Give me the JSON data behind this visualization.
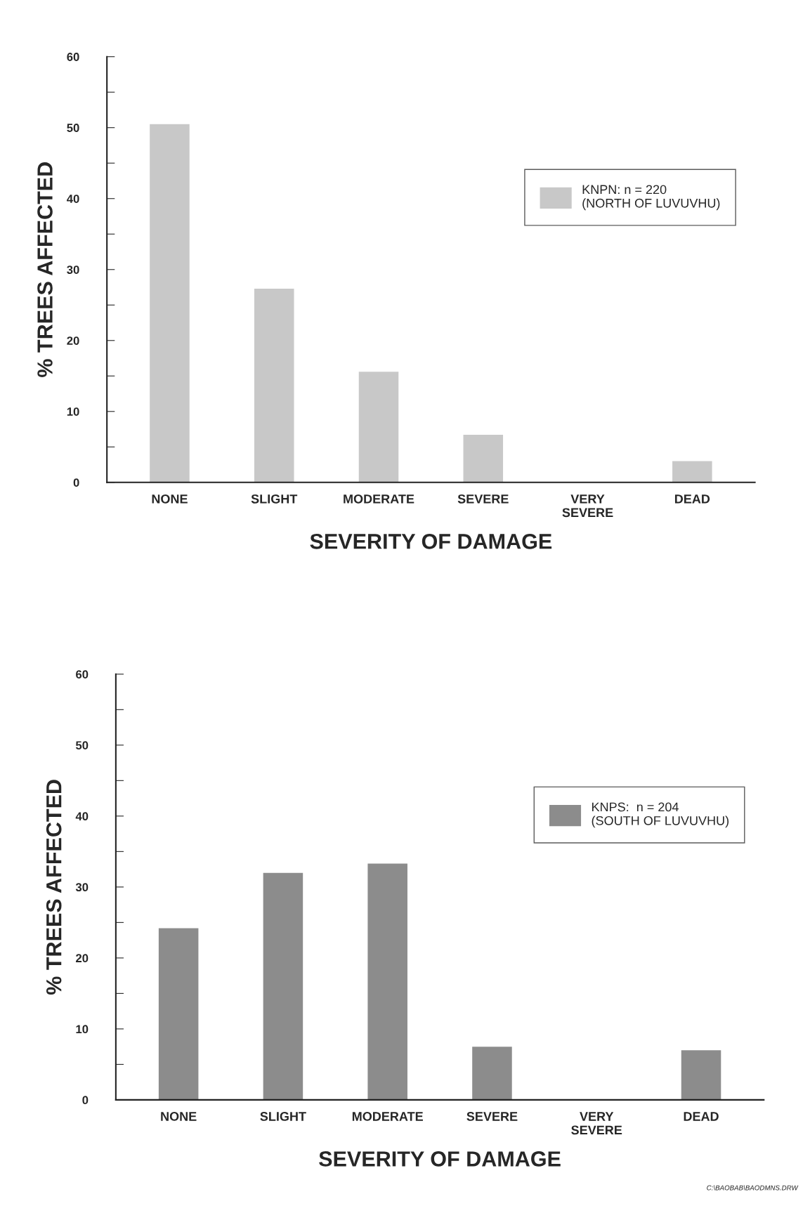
{
  "chart_data": [
    {
      "type": "bar",
      "xlabel": "SEVERITY OF DAMAGE",
      "ylabel": "% TREES AFFECTED",
      "categories": [
        "NONE",
        "SLIGHT",
        "MODERATE",
        "SEVERE",
        "VERY\nSEVERE",
        "DEAD"
      ],
      "series": [
        {
          "name": "KNPN: n = 220\n(NORTH OF LUVUVHU)",
          "color": "#c8c8c8",
          "values": [
            50.5,
            27.3,
            15.6,
            6.7,
            0,
            3.0
          ]
        }
      ],
      "ylim": [
        0,
        60
      ],
      "yticks": [
        0,
        {
          "value": 5,
          "label": null
        },
        10,
        {
          "value": 15,
          "label": null
        },
        20,
        {
          "value": 25,
          "label": null
        },
        30,
        {
          "value": 35,
          "label": null
        },
        40,
        {
          "value": 45,
          "label": null
        },
        50,
        {
          "value": 55,
          "label": null
        },
        60
      ],
      "grid": false,
      "legend": "top right"
    },
    {
      "type": "bar",
      "xlabel": "SEVERITY OF DAMAGE",
      "ylabel": "% TREES AFFECTED",
      "categories": [
        "NONE",
        "SLIGHT",
        "MODERATE",
        "SEVERE",
        "VERY\nSEVERE",
        "DEAD"
      ],
      "series": [
        {
          "name": "KNPS:  n = 204\n(SOUTH OF LUVUVHU)",
          "color": "#8c8c8c",
          "values": [
            24.2,
            32.0,
            33.3,
            7.5,
            0,
            7.0
          ]
        }
      ],
      "ylim": [
        0,
        60
      ],
      "yticks": [
        0,
        {
          "value": 5,
          "label": null
        },
        10,
        {
          "value": 15,
          "label": null
        },
        20,
        {
          "value": 25,
          "label": null
        },
        30,
        {
          "value": 35,
          "label": null
        },
        40,
        {
          "value": 45,
          "label": null
        },
        50,
        {
          "value": 55,
          "label": null
        },
        60
      ],
      "grid": false,
      "legend": "top right",
      "annotations": [
        "C:\\BAOBAB\\BAODMNS.DRW"
      ]
    }
  ]
}
